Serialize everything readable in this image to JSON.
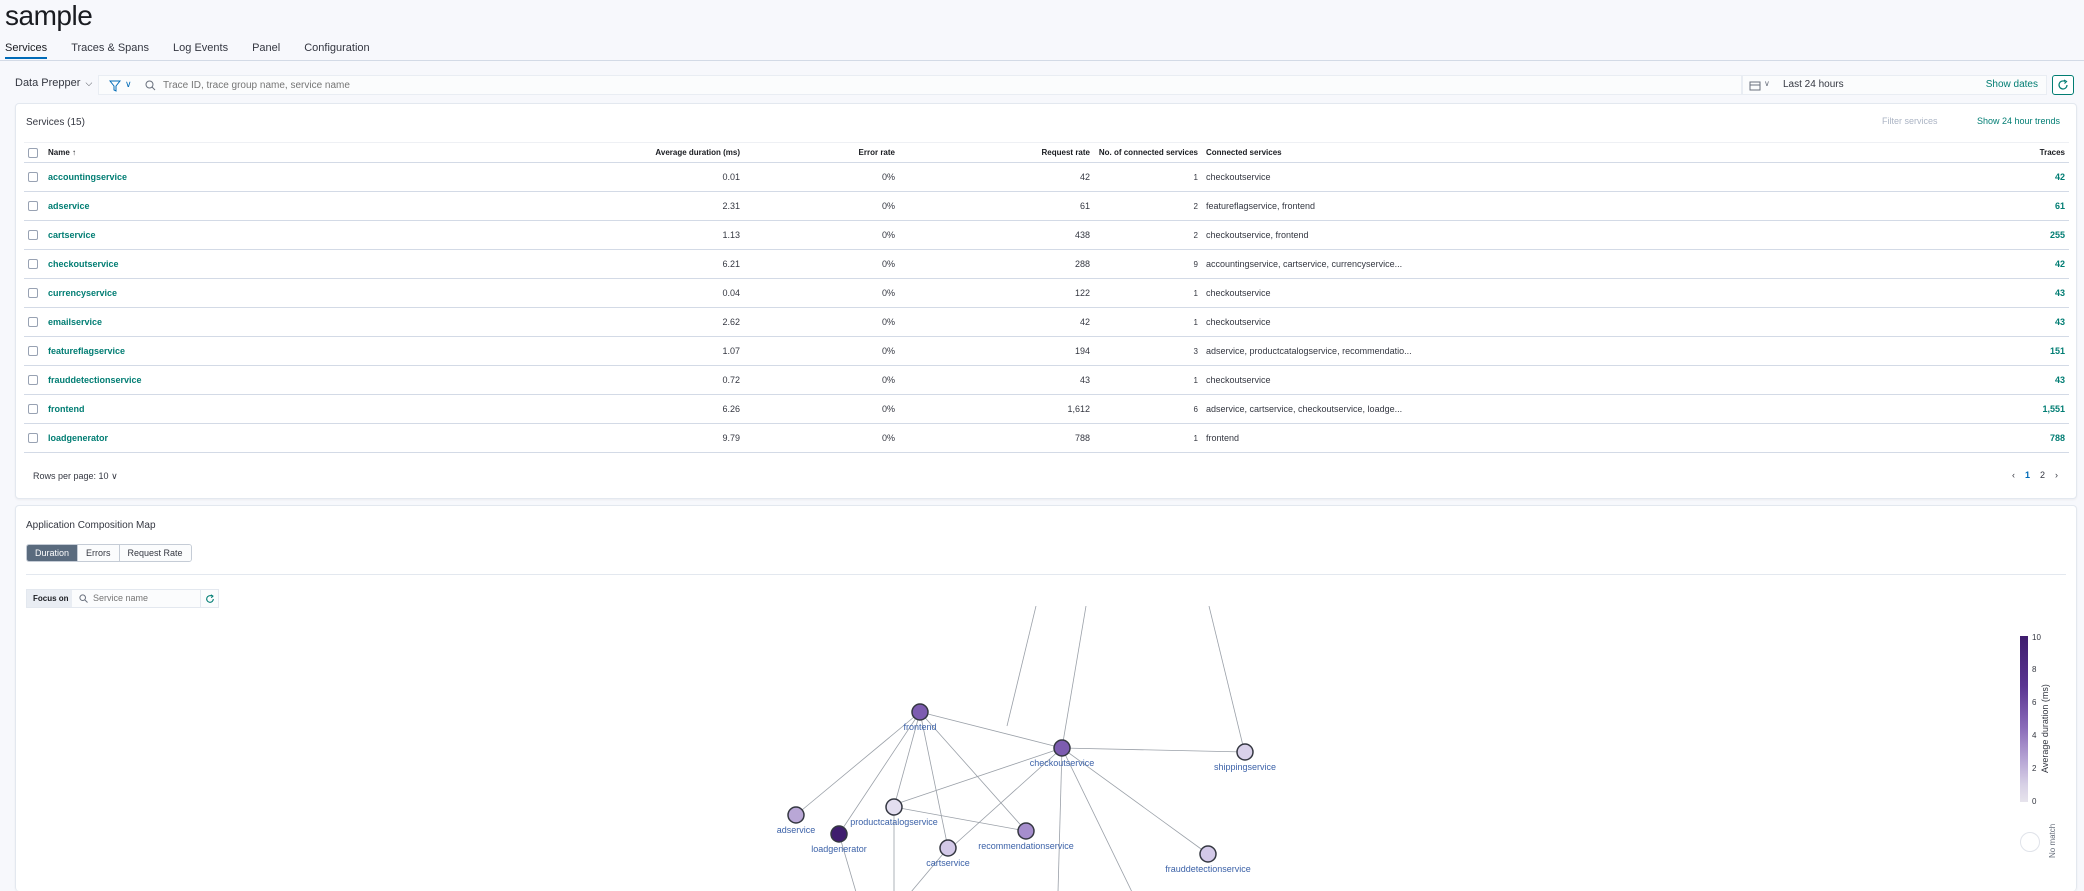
{
  "app": {
    "title": "sample"
  },
  "tabs": [
    "Services",
    "Traces & Spans",
    "Log Events",
    "Panel",
    "Configuration"
  ],
  "filter": {
    "source": "Data Prepper",
    "search_placeholder": "Trace ID, trace group name, service name",
    "date_range": "Last 24 hours",
    "show_dates": "Show dates"
  },
  "services": {
    "title": "Services (15)",
    "filter_placeholder": "Filter services",
    "trends_label": "Show 24 hour trends",
    "columns": {
      "name": "Name",
      "avg": "Average duration (ms)",
      "err": "Error rate",
      "req": "Request rate",
      "nconn": "No. of connected services",
      "conn": "Connected services",
      "traces": "Traces"
    },
    "rows": [
      {
        "name": "accountingservice",
        "avg": "0.01",
        "err": "0%",
        "req": "42",
        "nconn": "1",
        "conn": "checkoutservice",
        "traces": "42"
      },
      {
        "name": "adservice",
        "avg": "2.31",
        "err": "0%",
        "req": "61",
        "nconn": "2",
        "conn": "featureflagservice, frontend",
        "traces": "61"
      },
      {
        "name": "cartservice",
        "avg": "1.13",
        "err": "0%",
        "req": "438",
        "nconn": "2",
        "conn": "checkoutservice, frontend",
        "traces": "255"
      },
      {
        "name": "checkoutservice",
        "avg": "6.21",
        "err": "0%",
        "req": "288",
        "nconn": "9",
        "conn": "accountingservice, cartservice, currencyservice...",
        "traces": "42"
      },
      {
        "name": "currencyservice",
        "avg": "0.04",
        "err": "0%",
        "req": "122",
        "nconn": "1",
        "conn": "checkoutservice",
        "traces": "43"
      },
      {
        "name": "emailservice",
        "avg": "2.62",
        "err": "0%",
        "req": "42",
        "nconn": "1",
        "conn": "checkoutservice",
        "traces": "43"
      },
      {
        "name": "featureflagservice",
        "avg": "1.07",
        "err": "0%",
        "req": "194",
        "nconn": "3",
        "conn": "adservice, productcatalogservice, recommendatio...",
        "traces": "151"
      },
      {
        "name": "frauddetectionservice",
        "avg": "0.72",
        "err": "0%",
        "req": "43",
        "nconn": "1",
        "conn": "checkoutservice",
        "traces": "43"
      },
      {
        "name": "frontend",
        "avg": "6.26",
        "err": "0%",
        "req": "1,612",
        "nconn": "6",
        "conn": "adservice, cartservice, checkoutservice, loadge...",
        "traces": "1,551"
      },
      {
        "name": "loadgenerator",
        "avg": "9.79",
        "err": "0%",
        "req": "788",
        "nconn": "1",
        "conn": "frontend",
        "traces": "788"
      }
    ],
    "rows_per_page": "Rows per page: 10",
    "pages": [
      "1",
      "2"
    ]
  },
  "map": {
    "title": "Application Composition Map",
    "modes": [
      "Duration",
      "Errors",
      "Request Rate"
    ],
    "focus_label": "Focus on",
    "focus_placeholder": "Service name",
    "legend_title": "Average duration (ms)",
    "legend_ticks": [
      "10",
      "8",
      "6",
      "4",
      "2",
      "0"
    ],
    "no_match": "No match",
    "nodes": [
      {
        "label": "frontend",
        "color": "#7d5cb0"
      },
      {
        "label": "checkoutservice",
        "color": "#7d5cb0"
      },
      {
        "label": "shippingservice",
        "color": "#d9d1ea"
      },
      {
        "label": "adservice",
        "color": "#b9a7d6"
      },
      {
        "label": "productcatalogservice",
        "color": "#e3def0"
      },
      {
        "label": "loadgenerator",
        "color": "#3f1d6e"
      },
      {
        "label": "recommendationservice",
        "color": "#a68ecd"
      },
      {
        "label": "cartservice",
        "color": "#d3c9e8"
      },
      {
        "label": "frauddetectionservice",
        "color": "#d3c9e8"
      }
    ]
  }
}
